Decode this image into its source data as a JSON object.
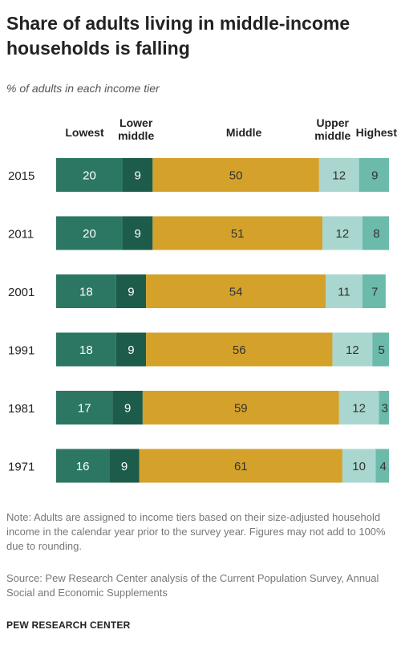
{
  "title": "Share of adults living in middle-income households is falling",
  "subtitle": "% of adults in each income tier",
  "colors": {
    "lowest": "#2b7763",
    "lower_middle": "#1d5c4a",
    "middle": "#d4a12a",
    "upper_middle": "#a9d7cf",
    "highest": "#6bbaaa",
    "label_light": "#ffffff",
    "label_dark": "#333333"
  },
  "chart_data": {
    "type": "bar",
    "orientation": "horizontal",
    "stacked": true,
    "categories": [
      "2015",
      "2011",
      "2001",
      "1991",
      "1981",
      "1971"
    ],
    "series": [
      {
        "name": "Lowest",
        "values": [
          20,
          20,
          18,
          18,
          17,
          16
        ]
      },
      {
        "name": "Lower middle",
        "values": [
          9,
          9,
          9,
          9,
          9,
          9
        ]
      },
      {
        "name": "Middle",
        "values": [
          50,
          51,
          54,
          56,
          59,
          61
        ]
      },
      {
        "name": "Upper middle",
        "values": [
          12,
          12,
          11,
          12,
          12,
          10
        ]
      },
      {
        "name": "Highest",
        "values": [
          9,
          8,
          7,
          5,
          3,
          4
        ]
      }
    ],
    "legend_position": "top",
    "data_labels": true
  },
  "note": "Note: Adults are assigned to income tiers based on their size-adjusted household income in the calendar year prior to the survey year. Figures may not add to 100% due to rounding.",
  "source": "Source: Pew Research Center analysis of the Current Population Survey, Annual Social and Economic Supplements",
  "footer": "PEW RESEARCH CENTER"
}
